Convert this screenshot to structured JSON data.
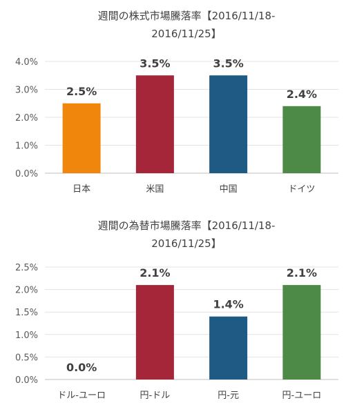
{
  "chart_data": [
    {
      "type": "bar",
      "title": "週間の株式市場騰落率【2016/11/18-2016/11/25】",
      "title_lines": [
        "週間の株式市場騰落率【2016/11/18-",
        "2016/11/25】"
      ],
      "categories": [
        "日本",
        "米国",
        "中国",
        "ドイツ"
      ],
      "values": [
        2.5,
        3.5,
        3.5,
        2.4
      ],
      "value_labels": [
        "2.5%",
        "3.5%",
        "3.5%",
        "2.4%"
      ],
      "colors": [
        "#F0860C",
        "#A52639",
        "#1F5A84",
        "#4E8A47"
      ],
      "yticks": [
        "0.0%",
        "1.0%",
        "2.0%",
        "3.0%",
        "4.0%"
      ],
      "ylim": [
        0,
        4
      ],
      "xlabel": "",
      "ylabel": "",
      "grid": true
    },
    {
      "type": "bar",
      "title": "週間の為替市場騰落率【2016/11/18-2016/11/25】",
      "title_lines": [
        "週間の為替市場騰落率【2016/11/18-",
        "2016/11/25】"
      ],
      "categories": [
        "ドル-ユーロ",
        "円-ドル",
        "円-元",
        "円-ユーロ"
      ],
      "values": [
        0.0,
        2.1,
        1.4,
        2.1
      ],
      "value_labels": [
        "0.0%",
        "2.1%",
        "1.4%",
        "2.1%"
      ],
      "colors": [
        "#F0860C",
        "#A52639",
        "#1F5A84",
        "#4E8A47"
      ],
      "yticks": [
        "0.0%",
        "0.5%",
        "1.0%",
        "1.5%",
        "2.0%",
        "2.5%"
      ],
      "ylim": [
        0,
        2.5
      ],
      "xlabel": "",
      "ylabel": "",
      "grid": true
    }
  ]
}
